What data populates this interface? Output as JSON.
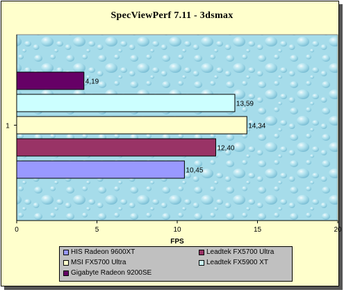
{
  "chart_data": {
    "type": "bar",
    "orientation": "horizontal",
    "title": "SpecViewPerf 7.11 - 3dsmax",
    "xlabel": "FPS",
    "ylabel": "",
    "category_label": "1",
    "xlim": [
      0,
      20
    ],
    "x_ticks": [
      "0",
      "5",
      "10",
      "15",
      "20"
    ],
    "grid": false,
    "legend_position": "bottom",
    "series": [
      {
        "name": "HIS Radeon 9600XT",
        "value": 10.45,
        "label": "10,45",
        "color": "#9999ff"
      },
      {
        "name": "Leadtek FX5700 Ultra",
        "value": 12.4,
        "label": "12,40",
        "color": "#993366"
      },
      {
        "name": "MSI FX5700 Ultra",
        "value": 14.34,
        "label": "14,34",
        "color": "#ffffcc"
      },
      {
        "name": "Leadtek FX5900 XT",
        "value": 13.59,
        "label": "13,59",
        "color": "#ccffff"
      },
      {
        "name": "Gigabyte Radeon 9200SE",
        "value": 4.19,
        "label": "4,19",
        "color": "#660066"
      }
    ]
  },
  "colors": {
    "frame_background": "#ffffcc",
    "plot_background": "#a6dcea",
    "legend_background": "#c0c0c0"
  }
}
